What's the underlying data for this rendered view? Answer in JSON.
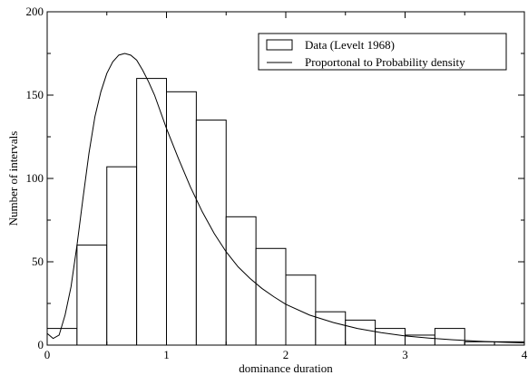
{
  "chart_data": {
    "type": "bar",
    "xlabel": "dominance duration",
    "ylabel": "Number of intervals",
    "xlim": [
      0,
      4
    ],
    "ylim": [
      0,
      200
    ],
    "x_ticks": [
      0,
      1,
      2,
      3,
      4
    ],
    "y_ticks": [
      0,
      50,
      100,
      150,
      200
    ],
    "grid": false,
    "legend_position": "top-right",
    "histogram": {
      "name": "Data (Levelt 1968)",
      "bin_width": 0.25,
      "bin_starts": [
        0,
        0.25,
        0.5,
        0.75,
        1.0,
        1.25,
        1.5,
        1.75,
        2.0,
        2.25,
        2.5,
        2.75,
        3.0,
        3.25,
        3.5,
        3.75
      ],
      "values": [
        10,
        60,
        107,
        160,
        152,
        135,
        77,
        58,
        42,
        20,
        15,
        10,
        6,
        10,
        2,
        2
      ]
    },
    "curve": {
      "name": "Proportonal to Probability density",
      "x": [
        0.0,
        0.05,
        0.1,
        0.15,
        0.2,
        0.25,
        0.3,
        0.35,
        0.4,
        0.45,
        0.5,
        0.55,
        0.6,
        0.65,
        0.7,
        0.75,
        0.8,
        0.85,
        0.9,
        1.0,
        1.1,
        1.2,
        1.3,
        1.4,
        1.5,
        1.6,
        1.7,
        1.8,
        1.9,
        2.0,
        2.2,
        2.4,
        2.6,
        2.8,
        3.0,
        3.2,
        3.4,
        3.6,
        3.8,
        4.0
      ],
      "y": [
        7,
        4,
        6,
        18,
        35,
        60,
        88,
        115,
        137,
        152,
        163,
        170,
        174,
        175,
        174,
        171,
        165,
        158,
        150,
        130,
        112,
        95,
        80,
        67,
        56,
        47,
        40,
        34,
        29,
        24.5,
        18,
        13.5,
        10,
        7.5,
        5.5,
        4.2,
        3.2,
        2.4,
        1.8,
        1.3
      ]
    }
  }
}
